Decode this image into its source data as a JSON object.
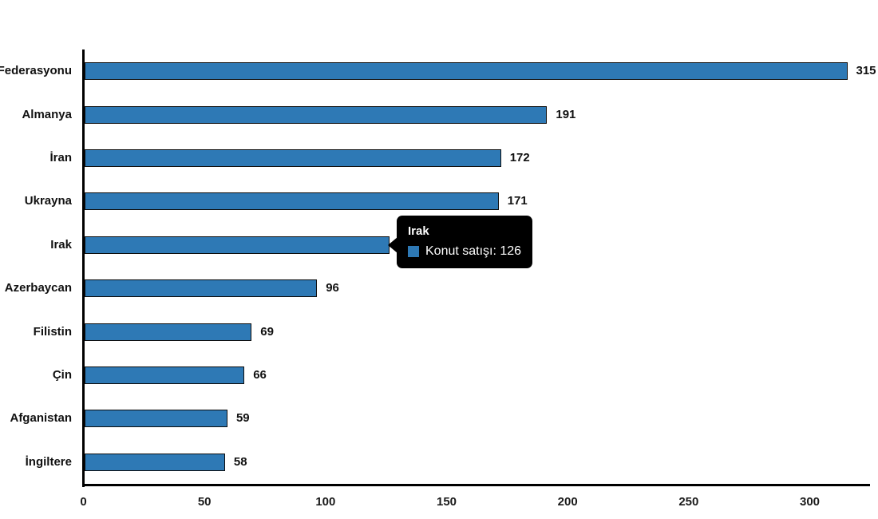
{
  "chart_data": {
    "type": "bar",
    "orientation": "horizontal",
    "title": "",
    "xlabel": "",
    "ylabel": "",
    "categories": [
      "Rusya Federasyonu",
      "Almanya",
      "İran",
      "Ukrayna",
      "Irak",
      "Azerbaycan",
      "Filistin",
      "Çin",
      "Afganistan",
      "İngiltere"
    ],
    "values": [
      315,
      191,
      172,
      171,
      126,
      96,
      69,
      66,
      59,
      58
    ],
    "series_name": "Konut satışı",
    "xlim": [
      0,
      300
    ],
    "x_ticks": [
      0,
      50,
      100,
      150,
      200,
      250,
      300
    ],
    "grid": false,
    "legend": false,
    "data_labels": true,
    "bar_color": "#2e79b5",
    "bar_border_color": "#0d0d0d",
    "axis_color": "#000000"
  },
  "tooltip": {
    "title": "Irak",
    "series_label": "Konut satışı",
    "value": 126,
    "text": "Konut satışı: 126",
    "marker_color": "#2e79b5",
    "background_color": "#000000",
    "text_color": "#ffffff"
  }
}
